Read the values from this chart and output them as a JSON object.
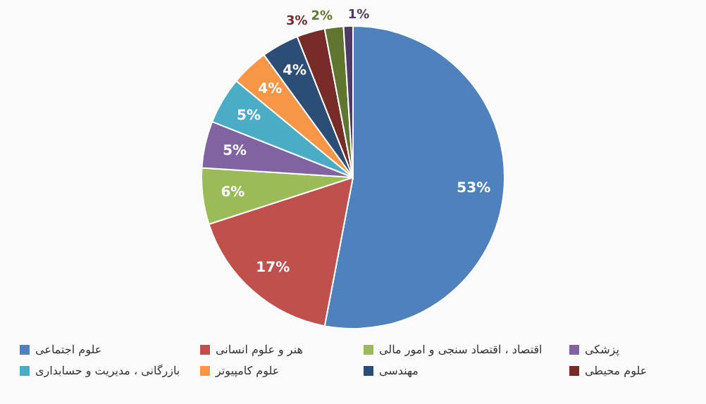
{
  "chart_data": {
    "type": "pie",
    "categories": [
      "علوم اجتماعی",
      "هنر و علوم انسانی",
      "اقتصاد ، اقتصاد سنجی و امور مالی",
      "پزشکی",
      "بازرگانی ، مدیریت و حسابداری",
      "علوم کامپیوتر",
      "مهندسی",
      "علوم محیطی",
      null,
      null
    ],
    "values": [
      53,
      17,
      6,
      5,
      5,
      4,
      4,
      3,
      2,
      1
    ],
    "colors": [
      "#4f81bd",
      "#c0504d",
      "#9bbb59",
      "#8064a2",
      "#4bacc6",
      "#f79646",
      "#2c4d75",
      "#772c2a",
      "#5f7530",
      "#4d3b62"
    ],
    "value_labels": [
      "53%",
      "17%",
      "6%",
      "5%",
      "5%",
      "4%",
      "4%",
      "3%",
      "2%",
      "1%"
    ],
    "legend": "bottom"
  }
}
